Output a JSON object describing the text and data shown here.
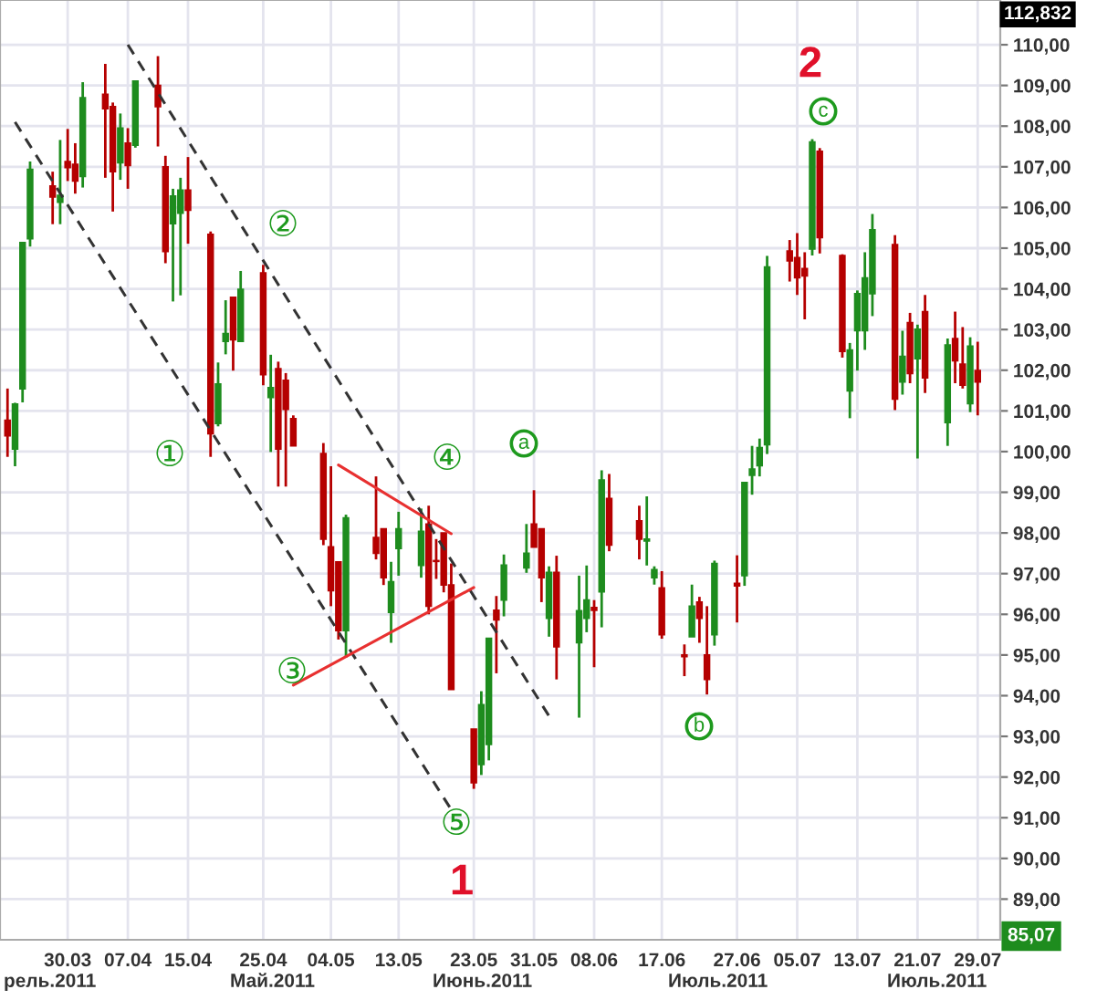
{
  "chart_data": {
    "type": "candlestick",
    "x": [
      "2011-03-22",
      "2011-03-23",
      "2011-03-24",
      "2011-03-25",
      "2011-03-28",
      "2011-03-29",
      "2011-03-30",
      "2011-03-31",
      "2011-04-01",
      "2011-04-04",
      "2011-04-05",
      "2011-04-06",
      "2011-04-07",
      "2011-04-08",
      "2011-04-11",
      "2011-04-12",
      "2011-04-13",
      "2011-04-14",
      "2011-04-15",
      "2011-04-18",
      "2011-04-19",
      "2011-04-20",
      "2011-04-21",
      "2011-04-22",
      "2011-04-25",
      "2011-04-26",
      "2011-04-27",
      "2011-04-28",
      "2011-04-29",
      "2011-05-03",
      "2011-05-04",
      "2011-05-05",
      "2011-05-06",
      "2011-05-10",
      "2011-05-11",
      "2011-05-12",
      "2011-05-13",
      "2011-05-16",
      "2011-05-17",
      "2011-05-18",
      "2011-05-19",
      "2011-05-20",
      "2011-05-23",
      "2011-05-24",
      "2011-05-25",
      "2011-05-26",
      "2011-05-27",
      "2011-05-30",
      "2011-05-31",
      "2011-06-01",
      "2011-06-02",
      "2011-06-03",
      "2011-06-06",
      "2011-06-07",
      "2011-06-08",
      "2011-06-09",
      "2011-06-10",
      "2011-06-14",
      "2011-06-15",
      "2011-06-16",
      "2011-06-17",
      "2011-06-20",
      "2011-06-21",
      "2011-06-22",
      "2011-06-23",
      "2011-06-24",
      "2011-06-27",
      "2011-06-28",
      "2011-06-29",
      "2011-06-30",
      "2011-07-01",
      "2011-07-04",
      "2011-07-05",
      "2011-07-06",
      "2011-07-07",
      "2011-07-08",
      "2011-07-11",
      "2011-07-12",
      "2011-07-13",
      "2011-07-14",
      "2011-07-15",
      "2011-07-18",
      "2011-07-19",
      "2011-07-20",
      "2011-07-21",
      "2011-07-22",
      "2011-07-25",
      "2011-07-26",
      "2011-07-27",
      "2011-07-28",
      "2011-07-29"
    ],
    "ohlc": [
      [
        100.77,
        101.55,
        99.87,
        100.39
      ],
      [
        100.06,
        101.2,
        99.64,
        101.17
      ],
      [
        101.54,
        105.14,
        101.21,
        105.14
      ],
      [
        105.23,
        107.13,
        105.04,
        106.94
      ],
      [
        106.53,
        106.88,
        105.59,
        106.26
      ],
      [
        106.13,
        107.66,
        105.59,
        106.3
      ],
      [
        107.13,
        107.93,
        106.65,
        106.98
      ],
      [
        107.06,
        107.58,
        106.34,
        106.65
      ],
      [
        106.76,
        109.08,
        106.49,
        108.7
      ],
      [
        108.78,
        109.53,
        106.73,
        108.43
      ],
      [
        108.48,
        108.58,
        105.9,
        106.88
      ],
      [
        107.1,
        108.31,
        106.68,
        107.95
      ],
      [
        107.58,
        107.95,
        106.46,
        107.03
      ],
      [
        107.53,
        109.11,
        107.47,
        109.11
      ],
      [
        109.0,
        109.72,
        107.5,
        108.48
      ],
      [
        107.0,
        107.27,
        104.63,
        104.92
      ],
      [
        105.6,
        106.46,
        103.69,
        106.28
      ],
      [
        105.86,
        106.73,
        103.84,
        106.43
      ],
      [
        106.43,
        107.24,
        105.11,
        105.93
      ],
      [
        105.34,
        105.41,
        99.87,
        100.44
      ],
      [
        100.69,
        102.19,
        100.62,
        101.66
      ],
      [
        102.71,
        103.72,
        102.39,
        102.9
      ],
      [
        103.79,
        103.79,
        101.99,
        102.75
      ],
      [
        102.71,
        104.44,
        102.71,
        103.99
      ],
      [
        104.39,
        104.59,
        101.63,
        101.89
      ],
      [
        101.33,
        102.38,
        99.99,
        101.57
      ],
      [
        102.04,
        102.21,
        99.14,
        100.06
      ],
      [
        101.75,
        101.93,
        99.14,
        101.04
      ],
      [
        100.81,
        100.89,
        100.14,
        100.14
      ],
      [
        99.95,
        100.21,
        97.7,
        97.85
      ],
      [
        97.66,
        99.64,
        96.2,
        96.58
      ],
      [
        97.29,
        97.29,
        95.38,
        95.6
      ],
      [
        95.6,
        98.45,
        94.93,
        98.37
      ],
      [
        97.89,
        99.39,
        97.35,
        97.5
      ],
      [
        98.1,
        98.1,
        96.72,
        96.9
      ],
      [
        96.05,
        97.29,
        95.3,
        96.8
      ],
      [
        97.62,
        98.52,
        96.95,
        98.1
      ],
      [
        97.2,
        98.6,
        96.9,
        98.04
      ],
      [
        98.22,
        98.67,
        96.0,
        96.2
      ],
      [
        97.32,
        97.85,
        96.87,
        97.3
      ],
      [
        98.0,
        98.0,
        96.54,
        96.72
      ],
      [
        96.72,
        97.25,
        94.15,
        94.15
      ],
      [
        93.18,
        93.18,
        91.71,
        91.86
      ],
      [
        92.31,
        94.11,
        92.05,
        93.78
      ],
      [
        92.8,
        95.41,
        92.41,
        95.41
      ],
      [
        96.1,
        96.45,
        94.55,
        95.86
      ],
      [
        96.35,
        97.47,
        95.95,
        97.21
      ],
      [
        97.14,
        98.22,
        97.02,
        97.5
      ],
      [
        98.22,
        99.05,
        97.65,
        97.65
      ],
      [
        98.1,
        98.1,
        96.3,
        96.9
      ],
      [
        95.9,
        97.18,
        95.45,
        97.03
      ],
      [
        97.03,
        97.44,
        94.4,
        95.2
      ],
      [
        95.3,
        96.95,
        93.46,
        96.09
      ],
      [
        95.9,
        97.2,
        95.56,
        96.35
      ],
      [
        96.17,
        96.35,
        94.7,
        96.1
      ],
      [
        96.55,
        99.54,
        95.68,
        99.3
      ],
      [
        98.85,
        99.45,
        97.55,
        97.7
      ],
      [
        98.3,
        98.67,
        97.35,
        97.85
      ],
      [
        97.8,
        98.9,
        97.2,
        97.85
      ],
      [
        96.9,
        97.18,
        96.73,
        97.1
      ],
      [
        96.65,
        97.06,
        95.4,
        95.5
      ],
      [
        95.0,
        95.26,
        94.48,
        94.96
      ],
      [
        95.45,
        96.73,
        95.45,
        96.2
      ],
      [
        96.3,
        96.43,
        95.3,
        95.9
      ],
      [
        95.0,
        96.2,
        94.03,
        94.4
      ],
      [
        95.5,
        97.32,
        95.23,
        97.25
      ],
      [
        96.76,
        97.45,
        95.8,
        96.7
      ],
      [
        96.95,
        99.24,
        96.7,
        99.24
      ],
      [
        99.42,
        100.14,
        98.94,
        99.57
      ],
      [
        99.65,
        100.32,
        99.39,
        100.1
      ],
      [
        100.17,
        104.81,
        99.94,
        104.54
      ],
      [
        104.93,
        105.2,
        104.18,
        104.69
      ],
      [
        104.77,
        105.37,
        103.85,
        104.27
      ],
      [
        104.5,
        104.9,
        103.25,
        104.32
      ],
      [
        104.98,
        107.68,
        104.82,
        107.61
      ],
      [
        107.38,
        107.46,
        104.87,
        105.26
      ],
      [
        104.82,
        104.85,
        102.31,
        102.46
      ],
      [
        101.49,
        102.67,
        100.82,
        102.5
      ],
      [
        102.97,
        103.96,
        101.99,
        103.88
      ],
      [
        102.97,
        104.9,
        102.5,
        104.27
      ],
      [
        103.88,
        105.84,
        103.33,
        105.45
      ],
      [
        105.09,
        105.32,
        101.02,
        101.29
      ],
      [
        101.71,
        102.97,
        101.4,
        102.34
      ],
      [
        103.17,
        103.41,
        101.68,
        101.92
      ],
      [
        102.28,
        103.12,
        99.83,
        103.01
      ],
      [
        103.44,
        103.85,
        101.44,
        101.81
      ],
      [
        100.71,
        102.78,
        100.14,
        102.62
      ],
      [
        102.78,
        103.44,
        101.68,
        102.23
      ],
      [
        102.15,
        103.06,
        101.55,
        101.63
      ],
      [
        101.18,
        102.81,
        100.97,
        102.59
      ],
      [
        101.99,
        102.7,
        100.89,
        101.71
      ]
    ],
    "colors": [
      "#b50000",
      "#1e8c1e",
      "#1e8c1e",
      "#1e8c1e",
      "#b50000",
      "#1e8c1e",
      "#b50000",
      "#b50000",
      "#1e8c1e",
      "#b50000",
      "#b50000",
      "#1e8c1e",
      "#b50000",
      "#1e8c1e",
      "#b50000",
      "#b50000",
      "#1e8c1e",
      "#1e8c1e",
      "#b50000",
      "#b50000",
      "#1e8c1e",
      "#1e8c1e",
      "#b50000",
      "#1e8c1e",
      "#b50000",
      "#1e8c1e",
      "#b50000",
      "#b50000",
      "#b50000",
      "#b50000",
      "#b50000",
      "#b50000",
      "#1e8c1e",
      "#b50000",
      "#b50000",
      "#1e8c1e",
      "#1e8c1e",
      "#1e8c1e",
      "#b50000",
      "#b50000",
      "#b50000",
      "#b50000",
      "#b50000",
      "#1e8c1e",
      "#1e8c1e",
      "#b50000",
      "#1e8c1e",
      "#1e8c1e",
      "#b50000",
      "#b50000",
      "#1e8c1e",
      "#b50000",
      "#1e8c1e",
      "#1e8c1e",
      "#b50000",
      "#1e8c1e",
      "#b50000",
      "#b50000",
      "#1e8c1e",
      "#1e8c1e",
      "#b50000",
      "#b50000",
      "#1e8c1e",
      "#b50000",
      "#b50000",
      "#1e8c1e",
      "#b50000",
      "#1e8c1e",
      "#1e8c1e",
      "#1e8c1e",
      "#1e8c1e",
      "#b50000",
      "#b50000",
      "#b50000",
      "#1e8c1e",
      "#b50000",
      "#b50000",
      "#1e8c1e",
      "#1e8c1e",
      "#1e8c1e",
      "#1e8c1e",
      "#b50000",
      "#1e8c1e",
      "#b50000",
      "#1e8c1e",
      "#b50000",
      "#1e8c1e",
      "#b50000",
      "#b50000",
      "#1e8c1e",
      "#b50000"
    ],
    "series": [
      {
        "type": "line",
        "x": [
          "2011-03-23",
          "2011-05-20"
        ],
        "values": [
          108.1,
          91.2
        ],
        "color": "#333333",
        "line_style": "dashed"
      },
      {
        "type": "line",
        "x": [
          "2011-04-07",
          "2011-06-02"
        ],
        "values": [
          110.0,
          93.5
        ],
        "color": "#333333",
        "line_style": "dashed"
      },
      {
        "type": "line",
        "x": [
          "2011-05-05",
          "2011-05-20"
        ],
        "values": [
          99.67,
          97.98
        ],
        "color": "#e83030",
        "line_style": "solid"
      },
      {
        "type": "line",
        "x": [
          "2011-04-29",
          "2011-05-23"
        ],
        "values": [
          94.26,
          96.66
        ],
        "color": "#e83030",
        "line_style": "solid"
      }
    ],
    "xlim": [
      "2011-03-21",
      "2011-08-01"
    ],
    "xticks": [
      {
        "value": "2011-03-30",
        "label": "30.03"
      },
      {
        "value": "2011-04-07",
        "label": "07.04"
      },
      {
        "value": "2011-04-15",
        "label": "15.04"
      },
      {
        "value": "2011-04-25",
        "label": "25.04"
      },
      {
        "value": "2011-05-04",
        "label": "04.05"
      },
      {
        "value": "2011-05-13",
        "label": "13.05"
      },
      {
        "value": "2011-05-23",
        "label": "23.05"
      },
      {
        "value": "2011-05-31",
        "label": "31.05"
      },
      {
        "value": "2011-06-08",
        "label": "08.06"
      },
      {
        "value": "2011-06-17",
        "label": "17.06"
      },
      {
        "value": "2011-06-27",
        "label": "27.06"
      },
      {
        "value": "2011-07-05",
        "label": "05.07"
      },
      {
        "value": "2011-07-13",
        "label": "13.07"
      },
      {
        "value": "2011-07-21",
        "label": "21.07"
      },
      {
        "value": "2011-07-29",
        "label": "29.07"
      }
    ],
    "ylim": [
      88.0,
      111.1
    ],
    "yticks": [
      {
        "value": 89,
        "label": "89,00"
      },
      {
        "value": 90,
        "label": "90,00"
      },
      {
        "value": 91,
        "label": "91,00"
      },
      {
        "value": 92,
        "label": "92,00"
      },
      {
        "value": 93,
        "label": "93,00"
      },
      {
        "value": 94,
        "label": "94,00"
      },
      {
        "value": 95,
        "label": "95,00"
      },
      {
        "value": 96,
        "label": "96,00"
      },
      {
        "value": 97,
        "label": "97,00"
      },
      {
        "value": 98,
        "label": "98,00"
      },
      {
        "value": 99,
        "label": "99,00"
      },
      {
        "value": 100,
        "label": "100,00"
      },
      {
        "value": 101,
        "label": "101,00"
      },
      {
        "value": 102,
        "label": "102,00"
      },
      {
        "value": 103,
        "label": "103,00"
      },
      {
        "value": 104,
        "label": "104,00"
      },
      {
        "value": 105,
        "label": "105,00"
      },
      {
        "value": 106,
        "label": "106,00"
      },
      {
        "value": 107,
        "label": "107,00"
      },
      {
        "value": 108,
        "label": "108,00"
      },
      {
        "value": 109,
        "label": "109,00"
      },
      {
        "value": 110,
        "label": "110,00"
      }
    ],
    "grid": true,
    "annotations": [
      "112,832",
      "85,07",
      "рель.2011",
      "Май.2011",
      "Июнь.2011",
      "Июль.2011",
      "Июль.2011",
      "①",
      "②",
      "③",
      "④",
      "⑤",
      "a",
      "b",
      "c",
      "1",
      "2"
    ]
  }
}
